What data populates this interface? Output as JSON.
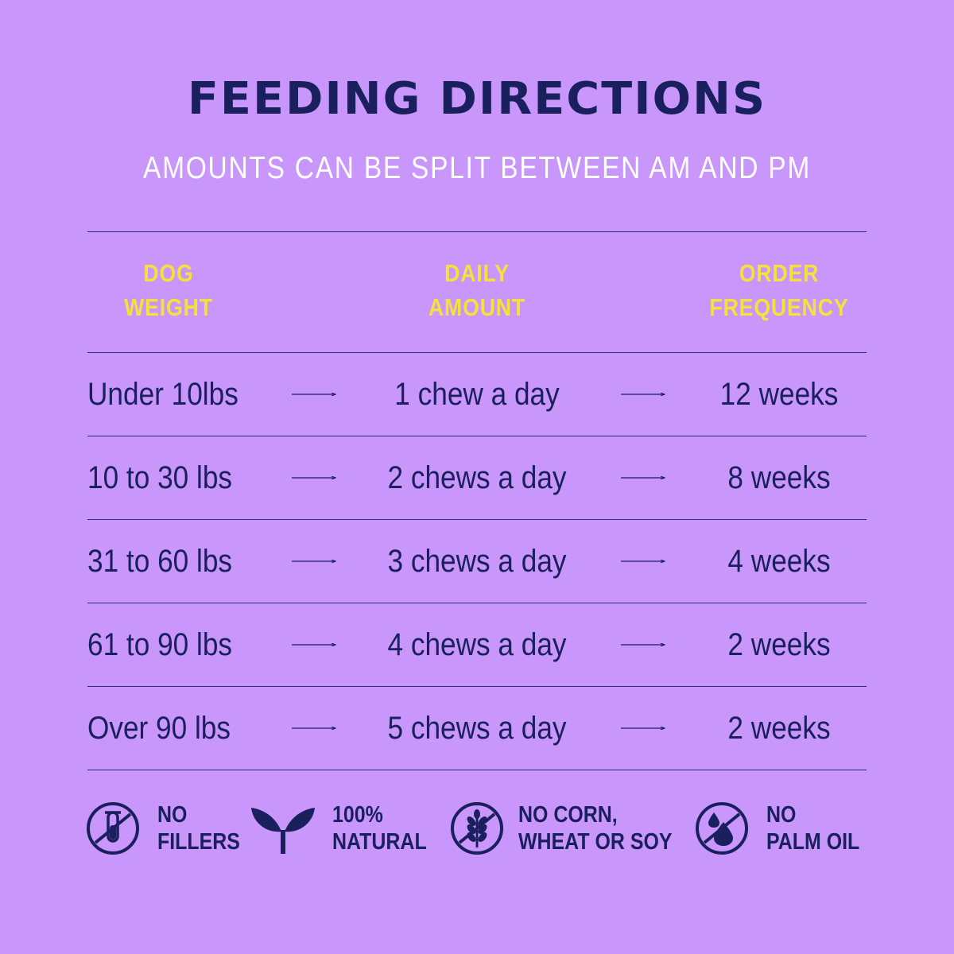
{
  "header": {
    "title": "FEEDING DIRECTIONS",
    "subtitle": "AMOUNTS CAN BE SPLIT BETWEEN AM AND PM"
  },
  "table": {
    "columns": [
      {
        "line1": "DOG",
        "line2": "WEIGHT"
      },
      {
        "line1": "DAILY",
        "line2": "AMOUNT"
      },
      {
        "line1": "ORDER",
        "line2": "FREQUENCY"
      }
    ],
    "rows": [
      {
        "weight": "Under 10lbs",
        "amount": "1 chew a day",
        "frequency": "12 weeks"
      },
      {
        "weight": "10 to 30 lbs",
        "amount": "2 chews a day",
        "frequency": "8 weeks"
      },
      {
        "weight": "31 to 60 lbs",
        "amount": "3 chews a day",
        "frequency": "4 weeks"
      },
      {
        "weight": "61 to 90 lbs",
        "amount": "4 chews a day",
        "frequency": "2 weeks"
      },
      {
        "weight": "Over 90 lbs",
        "amount": "5 chews a day",
        "frequency": "2 weeks"
      }
    ]
  },
  "badges": [
    {
      "icon": "no-fillers-icon",
      "line1": "NO",
      "line2": "FILLERS"
    },
    {
      "icon": "sprout-icon",
      "line1": "100%",
      "line2": "NATURAL"
    },
    {
      "icon": "no-grain-icon",
      "line1": "NO CORN,",
      "line2": "WHEAT OR SOY"
    },
    {
      "icon": "no-palm-oil-icon",
      "line1": "NO",
      "line2": "PALM OIL"
    }
  ],
  "colors": {
    "background": "#c996fb",
    "navy": "#1a1f5e",
    "heading_yellow": "#f6e13a",
    "subtitle_white": "#ffffff"
  }
}
